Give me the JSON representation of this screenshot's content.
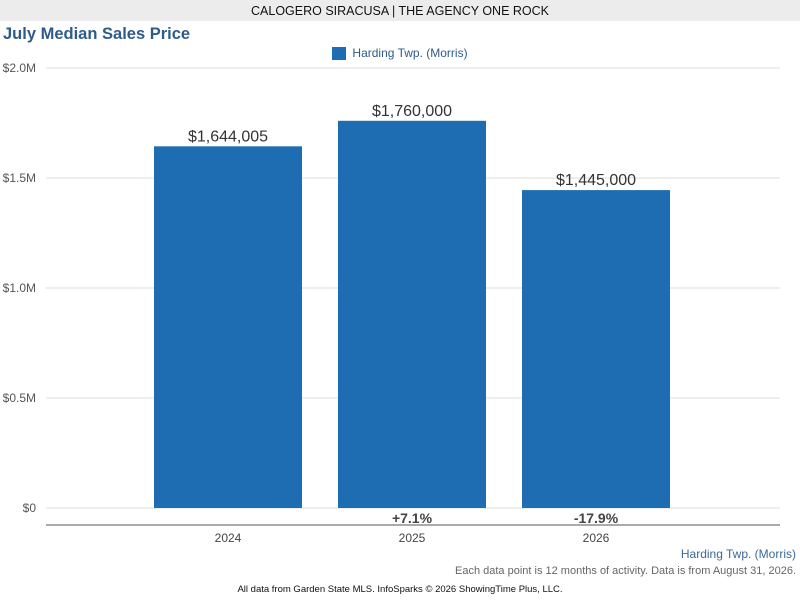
{
  "header": {
    "text": "CALOGERO SIRACUSA | THE AGENCY ONE ROCK"
  },
  "chart_data": {
    "type": "bar",
    "title": "July Median Sales Price",
    "categories": [
      "2024",
      "2025",
      "2026"
    ],
    "series": [
      {
        "name": "Harding Twp. (Morris)",
        "color": "#1e6db3",
        "values": [
          1644005,
          1760000,
          1445000
        ]
      }
    ],
    "data_labels": [
      "$1,644,005",
      "$1,760,000",
      "$1,445,000"
    ],
    "change_labels": [
      "",
      "+7.1%",
      "-17.9%"
    ],
    "ylim": [
      0,
      2000000
    ],
    "yticks": [
      {
        "value": 0,
        "label": "$0"
      },
      {
        "value": 500000,
        "label": "$0.5M"
      },
      {
        "value": 1000000,
        "label": "$1.0M"
      },
      {
        "value": 1500000,
        "label": "$1.5M"
      },
      {
        "value": 2000000,
        "label": "$2.0M"
      }
    ],
    "grid": true,
    "legend_position": "top-center"
  },
  "footer": {
    "series_label": "Harding Twp. (Morris)",
    "note": "Each data point is 12 months of activity. Data is from August 31, 2026.",
    "credit": "All data from Garden State MLS. InfoSparks © 2026 ShowingTime Plus, LLC."
  }
}
